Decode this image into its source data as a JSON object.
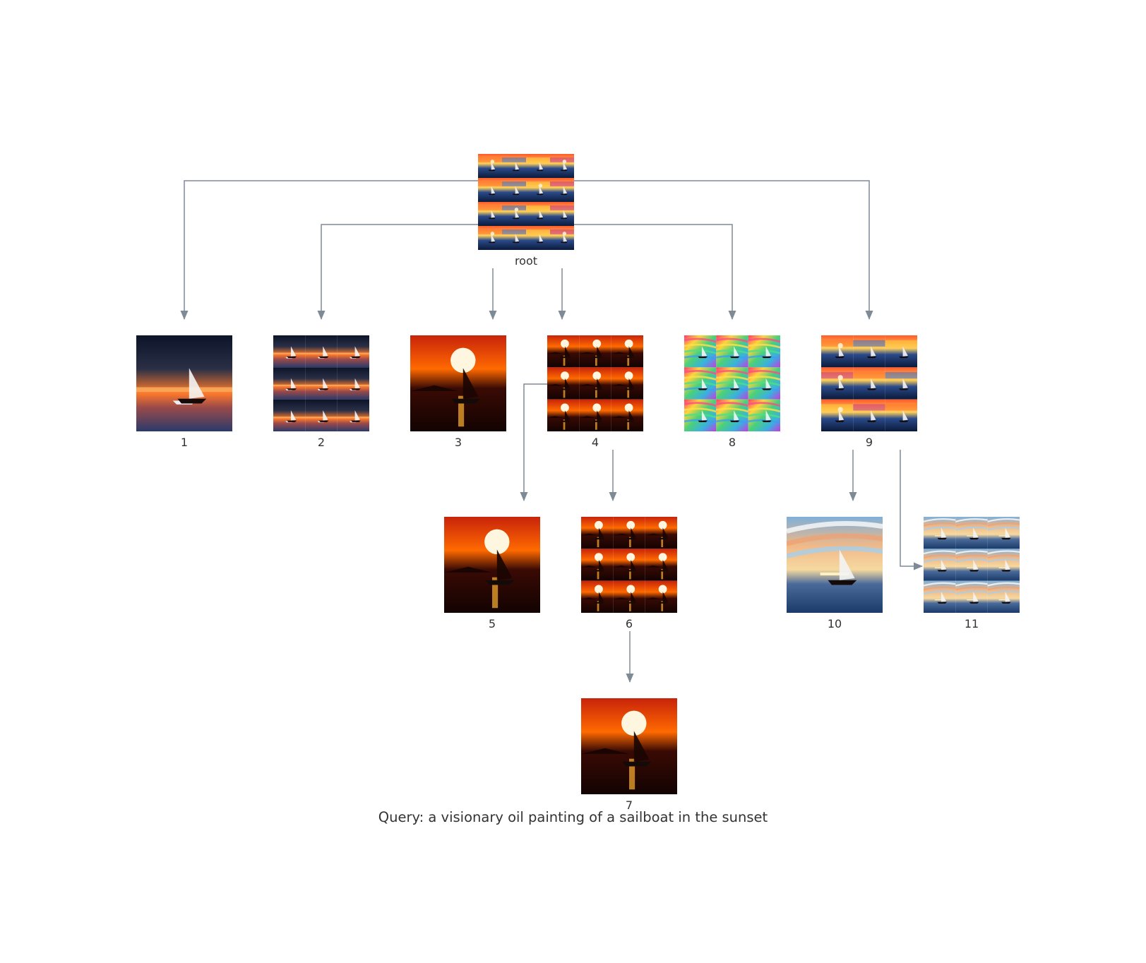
{
  "nodes": [
    {
      "id": "root",
      "label": "root",
      "grid": 4,
      "scene": "mix"
    },
    {
      "id": "n1",
      "label": "1",
      "grid": 1,
      "scene": "night"
    },
    {
      "id": "n2",
      "label": "2",
      "grid": 3,
      "scene": "night"
    },
    {
      "id": "n3",
      "label": "3",
      "grid": 1,
      "scene": "sun"
    },
    {
      "id": "n4",
      "label": "4",
      "grid": 3,
      "scene": "sun"
    },
    {
      "id": "n8",
      "label": "8",
      "grid": 3,
      "scene": "rainbow"
    },
    {
      "id": "n9",
      "label": "9",
      "grid": 3,
      "scene": "mix"
    },
    {
      "id": "n5",
      "label": "5",
      "grid": 1,
      "scene": "sun"
    },
    {
      "id": "n6",
      "label": "6",
      "grid": 3,
      "scene": "sun"
    },
    {
      "id": "n10",
      "label": "10",
      "grid": 1,
      "scene": "pastel"
    },
    {
      "id": "n11",
      "label": "11",
      "grid": 3,
      "scene": "pastel"
    },
    {
      "id": "n7",
      "label": "7",
      "grid": 1,
      "scene": "sun"
    }
  ],
  "edges": [
    {
      "from": "root",
      "to": "n1"
    },
    {
      "from": "root",
      "to": "n2"
    },
    {
      "from": "root",
      "to": "n3"
    },
    {
      "from": "root",
      "to": "n4"
    },
    {
      "from": "root",
      "to": "n8"
    },
    {
      "from": "root",
      "to": "n9"
    },
    {
      "from": "n4",
      "to": "n5"
    },
    {
      "from": "n4",
      "to": "n6"
    },
    {
      "from": "n9",
      "to": "n10"
    },
    {
      "from": "n9",
      "to": "n11"
    },
    {
      "from": "n6",
      "to": "n7"
    }
  ],
  "query": "Query: a visionary oil painting of a sailboat in the sunset",
  "colors": {
    "edge": "#7e8a95",
    "sun": "#ff6a00",
    "night": "#1a2340",
    "rainbow": "#5ad0c8",
    "pastel": "#9ab8d8"
  }
}
